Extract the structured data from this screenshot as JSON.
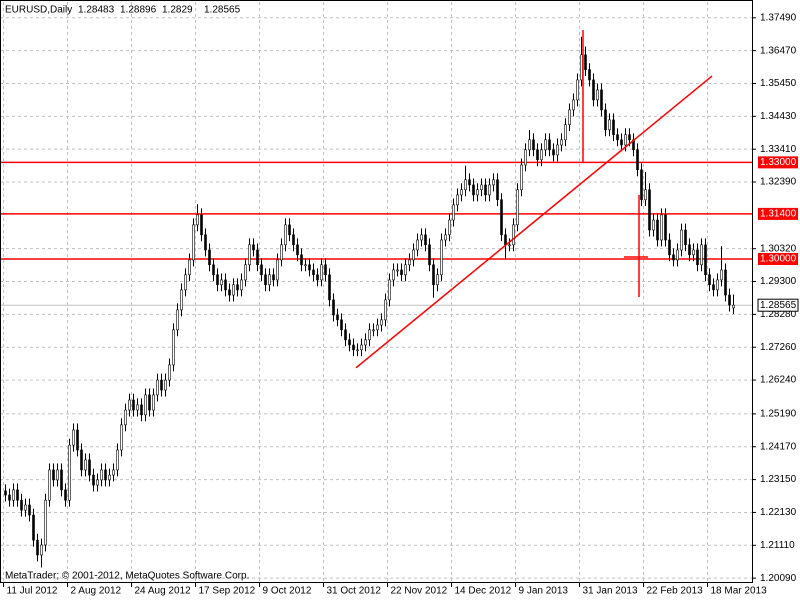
{
  "chart_data": {
    "type": "candlestick",
    "title": "EURUSD,Daily",
    "watermark": "MetaTrader; © 2001-2012, MetaQuotes Software Corp.",
    "color": "#000000",
    "up_color": "#ffffff",
    "down_color": "#000000",
    "grid": true,
    "grid_color": "#c0c0c0",
    "hline_color": "#ff0000",
    "ylim": [
      1.1997,
      1.3798
    ],
    "yticks": [
      {
        "value": 1.3749,
        "label": "1.37490"
      },
      {
        "value": 1.3647,
        "label": "1.36470"
      },
      {
        "value": 1.3545,
        "label": "1.35450"
      },
      {
        "value": 1.3443,
        "label": "1.34430"
      },
      {
        "value": 1.3341,
        "label": "1.33410"
      },
      {
        "value": 1.3239,
        "label": "1.32390"
      },
      {
        "value": 1.3032,
        "label": "1.30320"
      },
      {
        "value": 1.293,
        "label": "1.29300"
      },
      {
        "value": 1.2828,
        "label": "1.28280"
      },
      {
        "value": 1.2726,
        "label": "1.27260"
      },
      {
        "value": 1.2624,
        "label": "1.26240"
      },
      {
        "value": 1.2519,
        "label": "1.25190"
      },
      {
        "value": 1.2417,
        "label": "1.24170"
      },
      {
        "value": 1.2315,
        "label": "1.23150"
      },
      {
        "value": 1.2213,
        "label": "1.22130"
      },
      {
        "value": 1.2111,
        "label": "1.21110"
      },
      {
        "value": 1.2009,
        "label": "1.20090"
      }
    ],
    "hlines": [
      {
        "value": 1.33,
        "label": "1.33000"
      },
      {
        "value": 1.314,
        "label": "1.31400"
      },
      {
        "value": 1.3,
        "label": "1.30000"
      }
    ],
    "last_price": {
      "value": 1.28565,
      "label": "1.28565"
    },
    "trendlines": [
      {
        "x": [
          87.75,
          176.75
        ],
        "y": [
          1.2662,
          1.3568
        ]
      },
      {
        "x": [
          144.5,
          144.5
        ],
        "y": [
          1.3711,
          1.3301
        ]
      },
      {
        "x": [
          158.5,
          158.5
        ],
        "y": [
          1.3199,
          1.2882
        ]
      },
      {
        "x": [
          154.75,
          160.75
        ],
        "y": [
          1.3006,
          1.3006
        ]
      }
    ],
    "categories": [
      "11 Jul 2012",
      null,
      null,
      null,
      null,
      null,
      null,
      null,
      null,
      null,
      null,
      null,
      null,
      null,
      null,
      null,
      "2 Aug 2012",
      null,
      null,
      null,
      null,
      null,
      null,
      null,
      null,
      null,
      null,
      null,
      null,
      null,
      null,
      null,
      "24 Aug 2012",
      null,
      null,
      null,
      null,
      null,
      null,
      null,
      null,
      null,
      null,
      null,
      null,
      null,
      null,
      null,
      "17 Sep 2012",
      null,
      null,
      null,
      null,
      null,
      null,
      null,
      null,
      null,
      null,
      null,
      null,
      null,
      null,
      null,
      "9 Oct 2012",
      null,
      null,
      null,
      null,
      null,
      null,
      null,
      null,
      null,
      null,
      null,
      null,
      null,
      null,
      null,
      "31 Oct 2012",
      null,
      null,
      null,
      null,
      null,
      null,
      null,
      null,
      null,
      null,
      null,
      null,
      null,
      null,
      null,
      "22 Nov 2012",
      null,
      null,
      null,
      null,
      null,
      null,
      null,
      null,
      null,
      null,
      null,
      null,
      null,
      null,
      null,
      "14 Dec 2012",
      null,
      null,
      null,
      null,
      null,
      null,
      null,
      null,
      null,
      null,
      null,
      null,
      null,
      null,
      null,
      "9 Jan 2013",
      null,
      null,
      null,
      null,
      null,
      null,
      null,
      null,
      null,
      null,
      null,
      null,
      null,
      null,
      null,
      "31 Jan 2013",
      null,
      null,
      null,
      null,
      null,
      null,
      null,
      null,
      null,
      null,
      null,
      null,
      null,
      null,
      null,
      "22 Feb 2013",
      null,
      null,
      null,
      null,
      null,
      null,
      null,
      null,
      null,
      null,
      null,
      null,
      null,
      null,
      null,
      "18 Mar 2013",
      null,
      null,
      null,
      null,
      null,
      null
    ],
    "values": [
      [
        1.228,
        1.23,
        1.2247,
        1.2267
      ],
      [
        1.2267,
        1.2287,
        1.2231,
        1.2251
      ],
      [
        1.2251,
        1.2303,
        1.2231,
        1.2283
      ],
      [
        1.2283,
        1.2303,
        1.2231,
        1.2251
      ],
      [
        1.2251,
        1.2271,
        1.22,
        1.222
      ],
      [
        1.222,
        1.2256,
        1.22,
        1.2236
      ],
      [
        1.2236,
        1.2256,
        1.2185,
        1.2205
      ],
      [
        1.2205,
        1.2225,
        1.2107,
        1.2127
      ],
      [
        1.2127,
        1.2147,
        1.2061,
        1.2081
      ],
      [
        1.2081,
        1.2132,
        1.2042,
        1.2112
      ],
      [
        1.2112,
        1.2271,
        1.2092,
        1.2251
      ],
      [
        1.2251,
        1.2365,
        1.2231,
        1.2345
      ],
      [
        1.2345,
        1.2365,
        1.2294,
        1.2314
      ],
      [
        1.2314,
        1.2365,
        1.2294,
        1.2345
      ],
      [
        1.2345,
        1.2365,
        1.2263,
        1.2283
      ],
      [
        1.2283,
        1.2303,
        1.2231,
        1.2251
      ],
      [
        1.2251,
        1.2442,
        1.2231,
        1.2422
      ],
      [
        1.2422,
        1.2489,
        1.2402,
        1.2469
      ],
      [
        1.2469,
        1.2489,
        1.2387,
        1.2407
      ],
      [
        1.2407,
        1.2427,
        1.2325,
        1.2345
      ],
      [
        1.2345,
        1.2396,
        1.2325,
        1.2376
      ],
      [
        1.2376,
        1.2396,
        1.2309,
        1.2329
      ],
      [
        1.2329,
        1.2349,
        1.2278,
        1.2298
      ],
      [
        1.2298,
        1.2334,
        1.2278,
        1.2314
      ],
      [
        1.2314,
        1.2365,
        1.2294,
        1.2345
      ],
      [
        1.2345,
        1.2365,
        1.2294,
        1.2314
      ],
      [
        1.2314,
        1.2349,
        1.2294,
        1.2329
      ],
      [
        1.2329,
        1.2365,
        1.2309,
        1.2345
      ],
      [
        1.2345,
        1.2427,
        1.2325,
        1.2407
      ],
      [
        1.2407,
        1.2505,
        1.2387,
        1.2485
      ],
      [
        1.2485,
        1.2551,
        1.2465,
        1.2531
      ],
      [
        1.2531,
        1.2582,
        1.2511,
        1.2562
      ],
      [
        1.2562,
        1.2582,
        1.2511,
        1.2531
      ],
      [
        1.2531,
        1.2567,
        1.2511,
        1.2547
      ],
      [
        1.2547,
        1.2567,
        1.2496,
        1.2516
      ],
      [
        1.2516,
        1.2598,
        1.2496,
        1.2578
      ],
      [
        1.2578,
        1.2598,
        1.2511,
        1.2531
      ],
      [
        1.2531,
        1.2598,
        1.2511,
        1.2578
      ],
      [
        1.2578,
        1.2644,
        1.2558,
        1.2624
      ],
      [
        1.2624,
        1.2644,
        1.2573,
        1.2593
      ],
      [
        1.2593,
        1.2644,
        1.2573,
        1.2624
      ],
      [
        1.2624,
        1.2691,
        1.2604,
        1.2671
      ],
      [
        1.2671,
        1.28,
        1.2651,
        1.278
      ],
      [
        1.278,
        1.2862,
        1.276,
        1.2842
      ],
      [
        1.2842,
        1.2924,
        1.2822,
        1.2904
      ],
      [
        1.2904,
        1.2971,
        1.2884,
        1.2951
      ],
      [
        1.2951,
        1.3017,
        1.2931,
        1.2997
      ],
      [
        1.2997,
        1.3126,
        1.2977,
        1.3106
      ],
      [
        1.3106,
        1.317,
        1.3086,
        1.3137
      ],
      [
        1.3137,
        1.3157,
        1.3055,
        1.3075
      ],
      [
        1.3075,
        1.3095,
        1.3008,
        1.3028
      ],
      [
        1.3028,
        1.3048,
        1.2962,
        1.2982
      ],
      [
        1.2982,
        1.3002,
        1.2931,
        1.2951
      ],
      [
        1.2951,
        1.2971,
        1.29,
        1.292
      ],
      [
        1.292,
        1.2955,
        1.29,
        1.2935
      ],
      [
        1.2935,
        1.2955,
        1.2884,
        1.2904
      ],
      [
        1.2904,
        1.2924,
        1.2868,
        1.2888
      ],
      [
        1.2888,
        1.294,
        1.2868,
        1.292
      ],
      [
        1.292,
        1.294,
        1.2884,
        1.2904
      ],
      [
        1.2904,
        1.2955,
        1.2884,
        1.2935
      ],
      [
        1.2935,
        1.3002,
        1.2915,
        1.2982
      ],
      [
        1.2982,
        1.3064,
        1.2962,
        1.3044
      ],
      [
        1.3044,
        1.3064,
        1.3008,
        1.3028
      ],
      [
        1.3028,
        1.3048,
        1.2962,
        1.2982
      ],
      [
        1.2982,
        1.3002,
        1.2931,
        1.2951
      ],
      [
        1.2951,
        1.2971,
        1.29,
        1.292
      ],
      [
        1.292,
        1.2971,
        1.29,
        1.2951
      ],
      [
        1.2951,
        1.2971,
        1.2915,
        1.2935
      ],
      [
        1.2935,
        1.3017,
        1.2915,
        1.2997
      ],
      [
        1.2997,
        1.3064,
        1.2977,
        1.3044
      ],
      [
        1.3044,
        1.3126,
        1.3024,
        1.3106
      ],
      [
        1.3106,
        1.3126,
        1.3055,
        1.3075
      ],
      [
        1.3075,
        1.3095,
        1.3024,
        1.3044
      ],
      [
        1.3044,
        1.3064,
        1.2993,
        1.3013
      ],
      [
        1.3013,
        1.3033,
        1.2962,
        1.2982
      ],
      [
        1.2982,
        1.3002,
        1.2962,
        1.2982
      ],
      [
        1.2982,
        1.3002,
        1.2946,
        1.2966
      ],
      [
        1.2966,
        1.2986,
        1.2931,
        1.2951
      ],
      [
        1.2951,
        1.2971,
        1.2915,
        1.2935
      ],
      [
        1.2935,
        1.3002,
        1.2915,
        1.2982
      ],
      [
        1.2982,
        1.3002,
        1.2931,
        1.2951
      ],
      [
        1.2951,
        1.2971,
        1.2853,
        1.2873
      ],
      [
        1.2873,
        1.2893,
        1.2806,
        1.2826
      ],
      [
        1.2826,
        1.2846,
        1.2791,
        1.2811
      ],
      [
        1.2811,
        1.2831,
        1.276,
        1.278
      ],
      [
        1.278,
        1.28,
        1.2729,
        1.2749
      ],
      [
        1.2749,
        1.2769,
        1.2713,
        1.2733
      ],
      [
        1.2733,
        1.2753,
        1.2698,
        1.2718
      ],
      [
        1.2718,
        1.2738,
        1.2698,
        1.2718
      ],
      [
        1.2718,
        1.2753,
        1.2698,
        1.2733
      ],
      [
        1.2733,
        1.2769,
        1.2713,
        1.2749
      ],
      [
        1.2749,
        1.28,
        1.2729,
        1.278
      ],
      [
        1.278,
        1.28,
        1.276,
        1.278
      ],
      [
        1.278,
        1.2815,
        1.276,
        1.2795
      ],
      [
        1.2795,
        1.2831,
        1.2775,
        1.2811
      ],
      [
        1.2811,
        1.2893,
        1.2791,
        1.2873
      ],
      [
        1.2873,
        1.2955,
        1.2853,
        1.2935
      ],
      [
        1.2935,
        1.2986,
        1.2915,
        1.2966
      ],
      [
        1.2966,
        1.2986,
        1.2946,
        1.2966
      ],
      [
        1.2966,
        1.2986,
        1.2931,
        1.2951
      ],
      [
        1.2951,
        1.3002,
        1.2931,
        1.2982
      ],
      [
        1.2982,
        1.3017,
        1.2962,
        1.2997
      ],
      [
        1.2997,
        1.3048,
        1.2977,
        1.3028
      ],
      [
        1.3028,
        1.3079,
        1.3008,
        1.3059
      ],
      [
        1.3059,
        1.3095,
        1.3039,
        1.3075
      ],
      [
        1.3075,
        1.3095,
        1.3024,
        1.3044
      ],
      [
        1.3044,
        1.3064,
        1.2962,
        1.2982
      ],
      [
        1.2982,
        1.3002,
        1.288,
        1.292
      ],
      [
        1.292,
        1.2971,
        1.29,
        1.2951
      ],
      [
        1.2951,
        1.3079,
        1.2931,
        1.3059
      ],
      [
        1.3059,
        1.3095,
        1.3039,
        1.3075
      ],
      [
        1.3075,
        1.3141,
        1.3055,
        1.3121
      ],
      [
        1.3121,
        1.3188,
        1.3101,
        1.3168
      ],
      [
        1.3168,
        1.3219,
        1.3148,
        1.3199
      ],
      [
        1.3199,
        1.3235,
        1.3179,
        1.3215
      ],
      [
        1.3215,
        1.329,
        1.3195,
        1.3246
      ],
      [
        1.3246,
        1.3266,
        1.321,
        1.323
      ],
      [
        1.323,
        1.325,
        1.3179,
        1.3199
      ],
      [
        1.3199,
        1.3235,
        1.3179,
        1.3215
      ],
      [
        1.3215,
        1.325,
        1.3195,
        1.323
      ],
      [
        1.323,
        1.325,
        1.3179,
        1.3199
      ],
      [
        1.3199,
        1.325,
        1.3179,
        1.323
      ],
      [
        1.323,
        1.3266,
        1.321,
        1.3246
      ],
      [
        1.3246,
        1.3266,
        1.3164,
        1.3184
      ],
      [
        1.3184,
        1.3204,
        1.3055,
        1.3075
      ],
      [
        1.3075,
        1.3095,
        1.3,
        1.3044
      ],
      [
        1.3044,
        1.3064,
        1.3024,
        1.3044
      ],
      [
        1.3044,
        1.3126,
        1.3024,
        1.3106
      ],
      [
        1.3106,
        1.3235,
        1.3086,
        1.3215
      ],
      [
        1.3215,
        1.3312,
        1.3195,
        1.3292
      ],
      [
        1.3292,
        1.3359,
        1.3272,
        1.3339
      ],
      [
        1.3339,
        1.34,
        1.3319,
        1.337
      ],
      [
        1.337,
        1.339,
        1.3319,
        1.3339
      ],
      [
        1.3339,
        1.3359,
        1.3288,
        1.3308
      ],
      [
        1.3308,
        1.3359,
        1.3288,
        1.3339
      ],
      [
        1.3339,
        1.339,
        1.3319,
        1.337
      ],
      [
        1.337,
        1.339,
        1.3319,
        1.3339
      ],
      [
        1.3339,
        1.3359,
        1.3303,
        1.3323
      ],
      [
        1.3323,
        1.3374,
        1.3303,
        1.3354
      ],
      [
        1.3354,
        1.339,
        1.3334,
        1.337
      ],
      [
        1.337,
        1.3437,
        1.335,
        1.3417
      ],
      [
        1.3417,
        1.3483,
        1.3397,
        1.3463
      ],
      [
        1.3463,
        1.3514,
        1.3443,
        1.3494
      ],
      [
        1.3494,
        1.3576,
        1.3474,
        1.3556
      ],
      [
        1.3556,
        1.369,
        1.3536,
        1.3634
      ],
      [
        1.3634,
        1.366,
        1.3568,
        1.3588
      ],
      [
        1.3588,
        1.3608,
        1.3536,
        1.3556
      ],
      [
        1.3556,
        1.3576,
        1.3474,
        1.3494
      ],
      [
        1.3494,
        1.3545,
        1.3474,
        1.3525
      ],
      [
        1.3525,
        1.3545,
        1.3443,
        1.3463
      ],
      [
        1.3463,
        1.3483,
        1.3381,
        1.3401
      ],
      [
        1.3401,
        1.3452,
        1.3381,
        1.3432
      ],
      [
        1.3432,
        1.3452,
        1.3366,
        1.3386
      ],
      [
        1.3386,
        1.3406,
        1.335,
        1.337
      ],
      [
        1.337,
        1.339,
        1.3334,
        1.3354
      ],
      [
        1.3354,
        1.3406,
        1.3334,
        1.3386
      ],
      [
        1.3386,
        1.3406,
        1.335,
        1.337
      ],
      [
        1.337,
        1.339,
        1.3319,
        1.3339
      ],
      [
        1.3339,
        1.3359,
        1.3257,
        1.3277
      ],
      [
        1.3277,
        1.3297,
        1.3164,
        1.3184
      ],
      [
        1.3184,
        1.327,
        1.3164,
        1.3215
      ],
      [
        1.3215,
        1.3235,
        1.307,
        1.309
      ],
      [
        1.309,
        1.3141,
        1.307,
        1.3121
      ],
      [
        1.3121,
        1.3141,
        1.3039,
        1.3059
      ],
      [
        1.3059,
        1.3157,
        1.3039,
        1.3137
      ],
      [
        1.3137,
        1.3157,
        1.3039,
        1.3059
      ],
      [
        1.3059,
        1.3079,
        1.2993,
        1.3013
      ],
      [
        1.3013,
        1.3033,
        1.2977,
        1.2997
      ],
      [
        1.2997,
        1.3048,
        1.2977,
        1.3028
      ],
      [
        1.3028,
        1.311,
        1.3008,
        1.309
      ],
      [
        1.309,
        1.311,
        1.3024,
        1.3044
      ],
      [
        1.3044,
        1.3064,
        1.2993,
        1.3013
      ],
      [
        1.3013,
        1.3048,
        1.2993,
        1.3028
      ],
      [
        1.3028,
        1.3048,
        1.2962,
        1.2982
      ],
      [
        1.2982,
        1.3064,
        1.2962,
        1.3044
      ],
      [
        1.3044,
        1.3064,
        1.2931,
        1.2951
      ],
      [
        1.2951,
        1.2971,
        1.29,
        1.292
      ],
      [
        1.292,
        1.294,
        1.2884,
        1.2904
      ],
      [
        1.2904,
        1.2955,
        1.2884,
        1.2935
      ],
      [
        1.2935,
        1.304,
        1.2915,
        1.2966
      ],
      [
        1.2966,
        1.2986,
        1.2868,
        1.2888
      ],
      [
        1.2888,
        1.2908,
        1.2837,
        1.2857
      ],
      [
        1.28483,
        1.28896,
        1.2829,
        1.28565
      ]
    ]
  }
}
